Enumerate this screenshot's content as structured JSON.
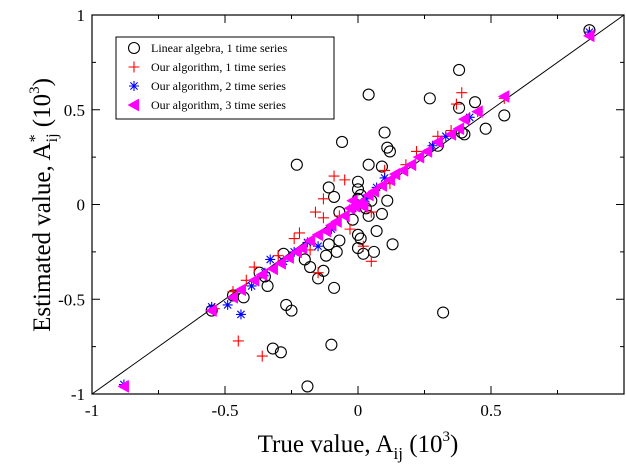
{
  "chart_data": {
    "type": "scatter",
    "title": "",
    "xlabel": {
      "main": "True value, A",
      "sub": "ij",
      "paren_open": " (10",
      "sup": "3",
      "paren_close": ")"
    },
    "ylabel": {
      "main": "Estimated value, A",
      "sup_star": "*",
      "sub": "ij",
      "paren_open": " (10",
      "sup": "3",
      "paren_close": ")"
    },
    "xlim": [
      -1,
      1
    ],
    "ylim": [
      -1,
      1
    ],
    "xticks": [
      -1,
      -0.5,
      0,
      0.5
    ],
    "xtick_labels": [
      "-1",
      "-0.5",
      "0",
      "0.5"
    ],
    "yticks": [
      -1,
      -0.5,
      0,
      0.5,
      1
    ],
    "ytick_labels": [
      "-1",
      "-0.5",
      "0",
      "0.5",
      "1"
    ],
    "grid": false,
    "legend_position": "top-left",
    "reference_line": {
      "slope": 1,
      "intercept": 0,
      "color": "#000000"
    },
    "series": [
      {
        "name": "Linear algebra, 1 time series",
        "marker": "circle-open",
        "color": "#000000",
        "points": [
          [
            0.87,
            0.92
          ],
          [
            0.38,
            0.71
          ],
          [
            0.04,
            0.58
          ],
          [
            0.27,
            0.56
          ],
          [
            0.44,
            0.54
          ],
          [
            0.55,
            0.47
          ],
          [
            0.38,
            0.51
          ],
          [
            0.48,
            0.4
          ],
          [
            0.4,
            0.37
          ],
          [
            0.1,
            0.38
          ],
          [
            0.3,
            0.31
          ],
          [
            0.11,
            0.3
          ],
          [
            0.12,
            0.28
          ],
          [
            -0.06,
            0.33
          ],
          [
            0.09,
            0.2
          ],
          [
            0.04,
            0.21
          ],
          [
            -0.23,
            0.21
          ],
          [
            0.0,
            0.12
          ],
          [
            0.0,
            0.08
          ],
          [
            0.01,
            0.05
          ],
          [
            0.0,
            0.03
          ],
          [
            -0.11,
            0.09
          ],
          [
            -0.09,
            0.04
          ],
          [
            0.05,
            0.02
          ],
          [
            0.11,
            0.02
          ],
          [
            0.03,
            -0.02
          ],
          [
            0.04,
            -0.06
          ],
          [
            0.09,
            -0.05
          ],
          [
            -0.07,
            -0.04
          ],
          [
            -0.02,
            -0.08
          ],
          [
            0.0,
            -0.16
          ],
          [
            0.01,
            -0.18
          ],
          [
            0.0,
            -0.23
          ],
          [
            0.02,
            -0.26
          ],
          [
            0.07,
            -0.14
          ],
          [
            -0.07,
            -0.19
          ],
          [
            -0.08,
            -0.25
          ],
          [
            0.06,
            -0.25
          ],
          [
            0.13,
            -0.21
          ],
          [
            -0.11,
            -0.21
          ],
          [
            -0.12,
            -0.27
          ],
          [
            -0.13,
            -0.35
          ],
          [
            -0.15,
            -0.39
          ],
          [
            -0.2,
            -0.29
          ],
          [
            -0.18,
            -0.33
          ],
          [
            -0.28,
            -0.26
          ],
          [
            -0.37,
            -0.36
          ],
          [
            -0.35,
            -0.38
          ],
          [
            -0.34,
            -0.43
          ],
          [
            -0.43,
            -0.49
          ],
          [
            -0.47,
            -0.48
          ],
          [
            -0.55,
            -0.56
          ],
          [
            -0.27,
            -0.53
          ],
          [
            -0.25,
            -0.56
          ],
          [
            -0.32,
            -0.76
          ],
          [
            -0.29,
            -0.78
          ],
          [
            -0.09,
            -0.44
          ],
          [
            -0.1,
            -0.74
          ],
          [
            -0.19,
            -0.96
          ],
          [
            0.32,
            -0.57
          ],
          [
            0.39,
            0.38
          ]
        ]
      },
      {
        "name": "Our algorithm, 1 time series",
        "marker": "plus",
        "color": "#ff0000",
        "points": [
          [
            0.87,
            0.91
          ],
          [
            0.39,
            0.59
          ],
          [
            0.37,
            0.53
          ],
          [
            0.45,
            0.49
          ],
          [
            0.55,
            0.56
          ],
          [
            0.3,
            0.36
          ],
          [
            0.27,
            0.29
          ],
          [
            0.1,
            0.18
          ],
          [
            -0.09,
            0.15
          ],
          [
            -0.05,
            0.13
          ],
          [
            -0.13,
            0.03
          ],
          [
            -0.16,
            -0.04
          ],
          [
            -0.13,
            -0.07
          ],
          [
            -0.07,
            -0.06
          ],
          [
            0.05,
            -0.04
          ],
          [
            -0.03,
            -0.13
          ],
          [
            0.02,
            -0.22
          ],
          [
            0.05,
            -0.3
          ],
          [
            -0.15,
            -0.36
          ],
          [
            -0.18,
            -0.24
          ],
          [
            -0.24,
            -0.18
          ],
          [
            -0.3,
            -0.27
          ],
          [
            -0.39,
            -0.33
          ],
          [
            -0.42,
            -0.4
          ],
          [
            -0.47,
            -0.46
          ],
          [
            -0.54,
            -0.55
          ],
          [
            -0.45,
            -0.72
          ],
          [
            -0.36,
            -0.8
          ],
          [
            0.12,
            0.11
          ],
          [
            0.18,
            0.21
          ],
          [
            0.35,
            0.39
          ],
          [
            0.22,
            0.28
          ],
          [
            -0.22,
            -0.15
          ]
        ]
      },
      {
        "name": "Our algorithm, 2 time series",
        "marker": "asterisk",
        "color": "#0000ff",
        "points": [
          [
            0.87,
            0.91
          ],
          [
            0.42,
            0.46
          ],
          [
            0.33,
            0.36
          ],
          [
            0.28,
            0.31
          ],
          [
            0.1,
            0.14
          ],
          [
            0.07,
            0.09
          ],
          [
            0.03,
            0.03
          ],
          [
            -0.02,
            -0.02
          ],
          [
            -0.1,
            -0.13
          ],
          [
            -0.15,
            -0.22
          ],
          [
            -0.19,
            -0.2
          ],
          [
            -0.24,
            -0.25
          ],
          [
            -0.28,
            -0.3
          ],
          [
            -0.33,
            -0.29
          ],
          [
            -0.35,
            -0.36
          ],
          [
            -0.4,
            -0.43
          ],
          [
            -0.44,
            -0.58
          ],
          [
            -0.49,
            -0.53
          ],
          [
            -0.55,
            -0.54
          ],
          [
            -0.88,
            -0.95
          ]
        ]
      },
      {
        "name": "Our algorithm, 3 time series",
        "marker": "triangle-left",
        "color": "#ff00ff",
        "points": [
          [
            0.87,
            0.89
          ],
          [
            0.55,
            0.57
          ],
          [
            0.45,
            0.49
          ],
          [
            0.4,
            0.45
          ],
          [
            0.38,
            0.4
          ],
          [
            0.35,
            0.37
          ],
          [
            0.3,
            0.33
          ],
          [
            0.26,
            0.28
          ],
          [
            0.14,
            0.16
          ],
          [
            0.12,
            0.13
          ],
          [
            0.09,
            0.1
          ],
          [
            0.06,
            0.07
          ],
          [
            0.04,
            0.05
          ],
          [
            0.01,
            0.01
          ],
          [
            -0.01,
            -0.01
          ],
          [
            -0.03,
            -0.02
          ],
          [
            -0.05,
            -0.06
          ],
          [
            -0.08,
            -0.09
          ],
          [
            -0.1,
            -0.11
          ],
          [
            -0.12,
            -0.14
          ],
          [
            -0.15,
            -0.16
          ],
          [
            -0.18,
            -0.19
          ],
          [
            -0.21,
            -0.23
          ],
          [
            -0.23,
            -0.25
          ],
          [
            -0.26,
            -0.28
          ],
          [
            -0.29,
            -0.31
          ],
          [
            -0.32,
            -0.34
          ],
          [
            -0.36,
            -0.37
          ],
          [
            -0.39,
            -0.4
          ],
          [
            -0.44,
            -0.45
          ],
          [
            -0.47,
            -0.49
          ],
          [
            -0.55,
            -0.56
          ],
          [
            -0.88,
            -0.96
          ],
          [
            0.2,
            0.21
          ],
          [
            0.23,
            0.25
          ],
          [
            0.17,
            0.18
          ],
          [
            -0.02,
            0.02
          ],
          [
            0.02,
            -0.01
          ]
        ]
      }
    ]
  }
}
